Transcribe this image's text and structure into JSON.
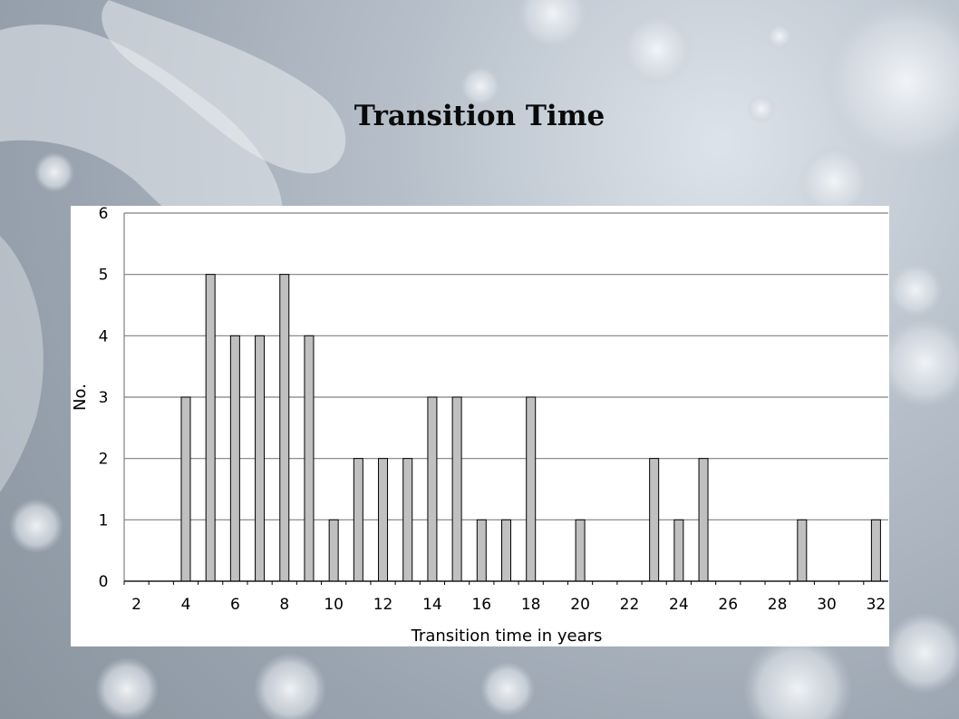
{
  "slide": {
    "title": "Transition Time"
  },
  "chart_data": {
    "type": "bar",
    "title": "Transition Time",
    "xlabel": "Transition time in years",
    "ylabel": "No.",
    "x": [
      2,
      3,
      4,
      5,
      6,
      7,
      8,
      9,
      10,
      11,
      12,
      13,
      14,
      15,
      16,
      17,
      18,
      19,
      20,
      21,
      22,
      23,
      24,
      25,
      26,
      27,
      28,
      29,
      30,
      31,
      32
    ],
    "values": [
      0,
      0,
      3,
      5,
      4,
      4,
      5,
      4,
      1,
      2,
      2,
      2,
      3,
      3,
      1,
      1,
      3,
      0,
      1,
      0,
      0,
      2,
      1,
      2,
      0,
      0,
      0,
      1,
      0,
      0,
      1
    ],
    "x_tick_labels": [
      "2",
      "4",
      "6",
      "8",
      "10",
      "12",
      "14",
      "16",
      "18",
      "20",
      "22",
      "24",
      "26",
      "28",
      "30",
      "32"
    ],
    "y_tick_labels": [
      "0",
      "1",
      "2",
      "3",
      "4",
      "5",
      "6"
    ],
    "ylim": [
      0,
      6
    ],
    "grid": true,
    "colors": {
      "bar_fill": "#c0c0c0",
      "bar_stroke": "#000000",
      "grid": "#808080",
      "panel": "#ffffff"
    }
  }
}
